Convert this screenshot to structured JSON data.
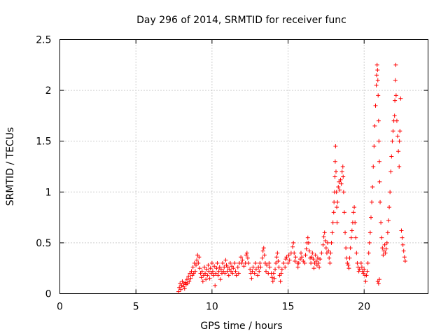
{
  "chart_data": {
    "type": "scatter",
    "title": "Day 296 of 2014, SRMTID for receiver func",
    "xlabel": "GPS time / hours",
    "ylabel": "SRMTID / TECUs",
    "xlim": [
      0,
      24.2
    ],
    "ylim": [
      0,
      2.5
    ],
    "xticks": [
      0,
      5,
      10,
      15,
      20
    ],
    "xtick_labels": [
      "0",
      "5",
      "10",
      "15",
      "20"
    ],
    "yticks": [
      0,
      0.5,
      1,
      1.5,
      2,
      2.5
    ],
    "ytick_labels": [
      "0",
      "0.5",
      "1",
      "1.5",
      "2",
      "2.5"
    ],
    "grid": true,
    "marker": "+",
    "color": "#ff0000",
    "series": [
      {
        "name": "SRMTID",
        "points": [
          [
            7.8,
            0.02
          ],
          [
            7.85,
            0.06
          ],
          [
            7.9,
            0.1
          ],
          [
            7.95,
            0.04
          ],
          [
            8.0,
            0.08
          ],
          [
            8.05,
            0.12
          ],
          [
            8.1,
            0.07
          ],
          [
            8.15,
            0.1
          ],
          [
            8.2,
            0.05
          ],
          [
            8.25,
            0.11
          ],
          [
            8.3,
            0.09
          ],
          [
            8.35,
            0.14
          ],
          [
            8.4,
            0.1
          ],
          [
            8.45,
            0.17
          ],
          [
            8.5,
            0.12
          ],
          [
            8.55,
            0.2
          ],
          [
            8.6,
            0.15
          ],
          [
            8.65,
            0.22
          ],
          [
            8.7,
            0.18
          ],
          [
            8.75,
            0.26
          ],
          [
            8.8,
            0.2
          ],
          [
            8.85,
            0.3
          ],
          [
            8.9,
            0.22
          ],
          [
            8.95,
            0.28
          ],
          [
            9.0,
            0.33
          ],
          [
            9.05,
            0.38
          ],
          [
            9.1,
            0.3
          ],
          [
            9.15,
            0.36
          ],
          [
            9.2,
            0.25
          ],
          [
            9.25,
            0.2
          ],
          [
            9.3,
            0.16
          ],
          [
            9.35,
            0.22
          ],
          [
            9.4,
            0.12
          ],
          [
            9.45,
            0.18
          ],
          [
            9.5,
            0.26
          ],
          [
            9.55,
            0.2
          ],
          [
            9.6,
            0.14
          ],
          [
            9.65,
            0.24
          ],
          [
            9.7,
            0.18
          ],
          [
            9.75,
            0.28
          ],
          [
            9.8,
            0.22
          ],
          [
            9.85,
            0.15
          ],
          [
            9.9,
            0.25
          ],
          [
            9.95,
            0.2
          ],
          [
            10.0,
            0.3
          ],
          [
            10.05,
            0.22
          ],
          [
            10.1,
            0.18
          ],
          [
            10.15,
            0.27
          ],
          [
            10.2,
            0.08
          ],
          [
            10.25,
            0.2
          ],
          [
            10.3,
            0.25
          ],
          [
            10.35,
            0.3
          ],
          [
            10.4,
            0.18
          ],
          [
            10.45,
            0.22
          ],
          [
            10.5,
            0.26
          ],
          [
            10.55,
            0.14
          ],
          [
            10.6,
            0.24
          ],
          [
            10.65,
            0.2
          ],
          [
            10.7,
            0.3
          ],
          [
            10.75,
            0.22
          ],
          [
            10.8,
            0.26
          ],
          [
            10.85,
            0.2
          ],
          [
            10.9,
            0.33
          ],
          [
            10.95,
            0.28
          ],
          [
            11.0,
            0.22
          ],
          [
            11.05,
            0.26
          ],
          [
            11.1,
            0.18
          ],
          [
            11.15,
            0.24
          ],
          [
            11.2,
            0.3
          ],
          [
            11.25,
            0.22
          ],
          [
            11.3,
            0.27
          ],
          [
            11.35,
            0.2
          ],
          [
            11.4,
            0.25
          ],
          [
            11.5,
            0.3
          ],
          [
            11.55,
            0.22
          ],
          [
            11.6,
            0.18
          ],
          [
            11.7,
            0.26
          ],
          [
            11.75,
            0.2
          ],
          [
            11.8,
            0.3
          ],
          [
            11.9,
            0.36
          ],
          [
            11.95,
            0.3
          ],
          [
            12.0,
            0.33
          ],
          [
            12.1,
            0.27
          ],
          [
            12.2,
            0.3
          ],
          [
            12.25,
            0.38
          ],
          [
            12.3,
            0.4
          ],
          [
            12.35,
            0.35
          ],
          [
            12.4,
            0.3
          ],
          [
            12.5,
            0.24
          ],
          [
            12.55,
            0.2
          ],
          [
            12.6,
            0.15
          ],
          [
            12.65,
            0.22
          ],
          [
            12.7,
            0.26
          ],
          [
            12.8,
            0.2
          ],
          [
            12.85,
            0.3
          ],
          [
            12.9,
            0.24
          ],
          [
            13.0,
            0.18
          ],
          [
            13.05,
            0.26
          ],
          [
            13.1,
            0.22
          ],
          [
            13.15,
            0.3
          ],
          [
            13.2,
            0.26
          ],
          [
            13.3,
            0.35
          ],
          [
            13.35,
            0.42
          ],
          [
            13.4,
            0.45
          ],
          [
            13.45,
            0.38
          ],
          [
            13.5,
            0.3
          ],
          [
            13.55,
            0.22
          ],
          [
            13.6,
            0.28
          ],
          [
            13.7,
            0.2
          ],
          [
            13.75,
            0.3
          ],
          [
            13.8,
            0.26
          ],
          [
            13.9,
            0.2
          ],
          [
            13.95,
            0.16
          ],
          [
            14.0,
            0.12
          ],
          [
            14.05,
            0.2
          ],
          [
            14.1,
            0.15
          ],
          [
            14.15,
            0.24
          ],
          [
            14.2,
            0.3
          ],
          [
            14.25,
            0.36
          ],
          [
            14.3,
            0.4
          ],
          [
            14.35,
            0.32
          ],
          [
            14.4,
            0.26
          ],
          [
            14.45,
            0.18
          ],
          [
            14.5,
            0.12
          ],
          [
            14.55,
            0.2
          ],
          [
            14.6,
            0.24
          ],
          [
            14.7,
            0.3
          ],
          [
            14.8,
            0.26
          ],
          [
            14.85,
            0.34
          ],
          [
            14.9,
            0.36
          ],
          [
            15.0,
            0.3
          ],
          [
            15.05,
            0.38
          ],
          [
            15.1,
            0.33
          ],
          [
            15.2,
            0.4
          ],
          [
            15.3,
            0.46
          ],
          [
            15.35,
            0.5
          ],
          [
            15.4,
            0.4
          ],
          [
            15.45,
            0.32
          ],
          [
            15.5,
            0.36
          ],
          [
            15.6,
            0.3
          ],
          [
            15.65,
            0.26
          ],
          [
            15.7,
            0.3
          ],
          [
            15.8,
            0.34
          ],
          [
            15.85,
            0.4
          ],
          [
            15.9,
            0.36
          ],
          [
            16.0,
            0.32
          ],
          [
            16.1,
            0.3
          ],
          [
            16.15,
            0.38
          ],
          [
            16.2,
            0.44
          ],
          [
            16.25,
            0.5
          ],
          [
            16.3,
            0.55
          ],
          [
            16.35,
            0.5
          ],
          [
            16.4,
            0.42
          ],
          [
            16.45,
            0.35
          ],
          [
            16.5,
            0.3
          ],
          [
            16.55,
            0.36
          ],
          [
            16.6,
            0.4
          ],
          [
            16.65,
            0.34
          ],
          [
            16.7,
            0.25
          ],
          [
            16.75,
            0.3
          ],
          [
            16.8,
            0.38
          ],
          [
            16.85,
            0.32
          ],
          [
            16.9,
            0.28
          ],
          [
            16.95,
            0.35
          ],
          [
            17.0,
            0.3
          ],
          [
            17.05,
            0.26
          ],
          [
            17.1,
            0.34
          ],
          [
            17.2,
            0.4
          ],
          [
            17.3,
            0.48
          ],
          [
            17.35,
            0.56
          ],
          [
            17.4,
            0.6
          ],
          [
            17.45,
            0.52
          ],
          [
            17.5,
            0.45
          ],
          [
            17.55,
            0.4
          ],
          [
            17.6,
            0.5
          ],
          [
            17.65,
            0.42
          ],
          [
            17.7,
            0.35
          ],
          [
            17.75,
            0.3
          ],
          [
            17.8,
            0.4
          ],
          [
            17.85,
            0.5
          ],
          [
            17.9,
            0.6
          ],
          [
            17.95,
            0.7
          ],
          [
            18.0,
            0.8
          ],
          [
            18.02,
            0.9
          ],
          [
            18.05,
            1.0
          ],
          [
            18.08,
            1.15
          ],
          [
            18.1,
            1.3
          ],
          [
            18.12,
            1.45
          ],
          [
            18.15,
            1.2
          ],
          [
            18.18,
            1.0
          ],
          [
            18.2,
            0.85
          ],
          [
            18.22,
            0.7
          ],
          [
            18.25,
            0.9
          ],
          [
            18.3,
            1.05
          ],
          [
            18.35,
            1.1
          ],
          [
            18.4,
            1.02
          ],
          [
            18.45,
            1.12
          ],
          [
            18.5,
            1.08
          ],
          [
            18.55,
            1.2
          ],
          [
            18.6,
            1.25
          ],
          [
            18.62,
            1.15
          ],
          [
            18.65,
            1.0
          ],
          [
            18.7,
            0.8
          ],
          [
            18.75,
            0.6
          ],
          [
            18.8,
            0.45
          ],
          [
            18.85,
            0.35
          ],
          [
            18.9,
            0.3
          ],
          [
            18.95,
            0.28
          ],
          [
            19.0,
            0.25
          ],
          [
            19.05,
            0.35
          ],
          [
            19.1,
            0.45
          ],
          [
            19.15,
            0.55
          ],
          [
            19.2,
            0.62
          ],
          [
            19.25,
            0.7
          ],
          [
            19.3,
            0.8
          ],
          [
            19.35,
            0.85
          ],
          [
            19.4,
            0.7
          ],
          [
            19.45,
            0.55
          ],
          [
            19.5,
            0.4
          ],
          [
            19.55,
            0.3
          ],
          [
            19.6,
            0.26
          ],
          [
            19.65,
            0.22
          ],
          [
            19.7,
            0.24
          ],
          [
            19.8,
            0.3
          ],
          [
            19.85,
            0.26
          ],
          [
            19.9,
            0.22
          ],
          [
            19.95,
            0.2
          ],
          [
            20.0,
            0.24
          ],
          [
            20.05,
            0.18
          ],
          [
            20.1,
            0.12
          ],
          [
            20.15,
            0.18
          ],
          [
            20.2,
            0.22
          ],
          [
            20.25,
            0.3
          ],
          [
            20.3,
            0.4
          ],
          [
            20.35,
            0.5
          ],
          [
            20.4,
            0.6
          ],
          [
            20.45,
            0.75
          ],
          [
            20.5,
            0.9
          ],
          [
            20.55,
            1.05
          ],
          [
            20.6,
            1.25
          ],
          [
            20.65,
            1.45
          ],
          [
            20.7,
            1.65
          ],
          [
            20.75,
            1.85
          ],
          [
            20.8,
            2.05
          ],
          [
            20.82,
            2.15
          ],
          [
            20.85,
            2.25
          ],
          [
            20.88,
            2.2
          ],
          [
            20.9,
            2.1
          ],
          [
            20.92,
            1.95
          ],
          [
            20.95,
            1.7
          ],
          [
            20.97,
            1.5
          ],
          [
            21.0,
            1.3
          ],
          [
            21.02,
            1.1
          ],
          [
            21.05,
            0.9
          ],
          [
            20.9,
            0.12
          ],
          [
            20.95,
            0.1
          ],
          [
            21.0,
            0.14
          ],
          [
            21.1,
            0.7
          ],
          [
            21.15,
            0.55
          ],
          [
            21.2,
            0.45
          ],
          [
            21.25,
            0.38
          ],
          [
            21.3,
            0.42
          ],
          [
            21.35,
            0.48
          ],
          [
            21.4,
            0.4
          ],
          [
            21.45,
            0.44
          ],
          [
            21.5,
            0.5
          ],
          [
            21.55,
            0.6
          ],
          [
            21.6,
            0.72
          ],
          [
            21.65,
            0.85
          ],
          [
            21.7,
            1.0
          ],
          [
            21.75,
            1.2
          ],
          [
            21.8,
            1.35
          ],
          [
            21.85,
            1.5
          ],
          [
            21.9,
            1.6
          ],
          [
            21.95,
            1.7
          ],
          [
            22.0,
            1.75
          ],
          [
            22.02,
            1.9
          ],
          [
            22.05,
            2.1
          ],
          [
            22.08,
            2.25
          ],
          [
            22.1,
            1.95
          ],
          [
            22.15,
            1.7
          ],
          [
            22.2,
            1.55
          ],
          [
            22.25,
            1.4
          ],
          [
            22.3,
            1.25
          ],
          [
            22.32,
            1.5
          ],
          [
            22.35,
            1.6
          ],
          [
            22.4,
            1.92
          ],
          [
            22.45,
            0.62
          ],
          [
            22.5,
            0.55
          ],
          [
            22.55,
            0.48
          ],
          [
            22.6,
            0.42
          ],
          [
            22.65,
            0.36
          ],
          [
            22.7,
            0.32
          ]
        ]
      }
    ]
  }
}
